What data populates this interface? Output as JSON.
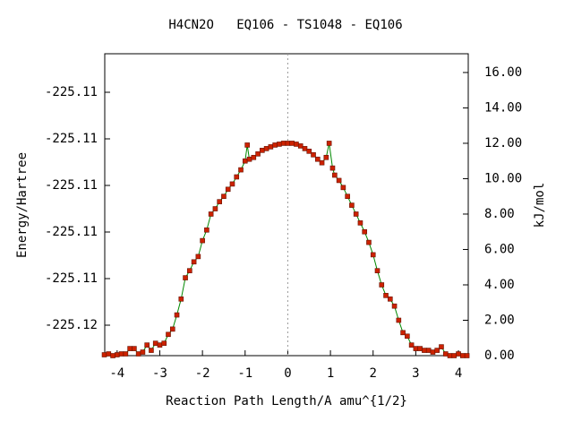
{
  "chart_data": {
    "type": "line",
    "title": "H4CN2O   EQ106 - TS1048 - EQ106",
    "xlabel": "Reaction Path Length/A amu^{1/2}",
    "ylabel": "Energy/Hartree",
    "y2label": "kJ/mol",
    "xlim": [
      -4.29,
      4.23
    ],
    "xticks": [
      -4,
      -3,
      -2,
      -1,
      0,
      1,
      2,
      3,
      4
    ],
    "ylim": [
      -225.116654,
      -225.110173
    ],
    "yticks": [
      {
        "value": -225.116,
        "label": "-225.12"
      },
      {
        "value": -225.115,
        "label": "-225.11"
      },
      {
        "value": -225.114,
        "label": "-225.11"
      },
      {
        "value": -225.113,
        "label": "-225.11"
      },
      {
        "value": -225.112,
        "label": "-225.11"
      },
      {
        "value": -225.111,
        "label": "-225.11"
      }
    ],
    "y2lim": [
      0,
      17.06
    ],
    "y2ticks": [
      {
        "value": 0,
        "label": "0.00"
      },
      {
        "value": 2,
        "label": "2.00"
      },
      {
        "value": 4,
        "label": "4.00"
      },
      {
        "value": 6,
        "label": "6.00"
      },
      {
        "value": 8,
        "label": "8.00"
      },
      {
        "value": 10,
        "label": "10.00"
      },
      {
        "value": 12,
        "label": "12.00"
      },
      {
        "value": 14,
        "label": "14.00"
      },
      {
        "value": 16,
        "label": "16.00"
      }
    ],
    "series": [
      {
        "axis": "y2",
        "color": "#008800",
        "marker_color": "#cc2200",
        "x": [
          -4.3,
          -4.2,
          -4.1,
          -4.0,
          -3.9,
          -3.8,
          -3.7,
          -3.6,
          -3.5,
          -3.4,
          -3.3,
          -3.2,
          -3.1,
          -3.0,
          -2.9,
          -2.8,
          -2.7,
          -2.6,
          -2.5,
          -2.4,
          -2.3,
          -2.2,
          -2.1,
          -2.0,
          -1.9,
          -1.8,
          -1.7,
          -1.6,
          -1.5,
          -1.4,
          -1.3,
          -1.2,
          -1.1,
          -1.0,
          -0.95,
          -0.9,
          -0.8,
          -0.7,
          -0.6,
          -0.5,
          -0.4,
          -0.3,
          -0.2,
          -0.1,
          0.0,
          0.1,
          0.2,
          0.3,
          0.4,
          0.5,
          0.6,
          0.7,
          0.8,
          0.9,
          0.97,
          1.05,
          1.1,
          1.2,
          1.3,
          1.4,
          1.5,
          1.6,
          1.7,
          1.8,
          1.9,
          2.0,
          2.1,
          2.2,
          2.3,
          2.4,
          2.5,
          2.6,
          2.7,
          2.8,
          2.9,
          3.0,
          3.1,
          3.2,
          3.3,
          3.4,
          3.5,
          3.6,
          3.7,
          3.8,
          3.9,
          4.0,
          4.1,
          4.2
        ],
        "values": [
          0.05,
          0.1,
          0.0,
          0.05,
          0.1,
          0.1,
          0.4,
          0.4,
          0.1,
          0.2,
          0.6,
          0.3,
          0.7,
          0.6,
          0.7,
          1.2,
          1.5,
          2.3,
          3.2,
          4.4,
          4.8,
          5.3,
          5.6,
          6.5,
          7.1,
          8.0,
          8.3,
          8.7,
          9.0,
          9.4,
          9.7,
          10.1,
          10.5,
          11.0,
          11.9,
          11.1,
          11.2,
          11.4,
          11.6,
          11.7,
          11.8,
          11.9,
          11.95,
          12.0,
          12.0,
          12.0,
          11.95,
          11.85,
          11.7,
          11.55,
          11.35,
          11.1,
          10.9,
          11.2,
          12.0,
          10.6,
          10.2,
          9.9,
          9.5,
          9.0,
          8.5,
          8.0,
          7.5,
          7.0,
          6.4,
          5.7,
          4.8,
          4.0,
          3.4,
          3.2,
          2.8,
          2.0,
          1.3,
          1.1,
          0.6,
          0.4,
          0.4,
          0.3,
          0.3,
          0.2,
          0.3,
          0.5,
          0.1,
          0.0,
          0.0,
          0.1,
          0.0,
          0.0
        ]
      }
    ]
  }
}
